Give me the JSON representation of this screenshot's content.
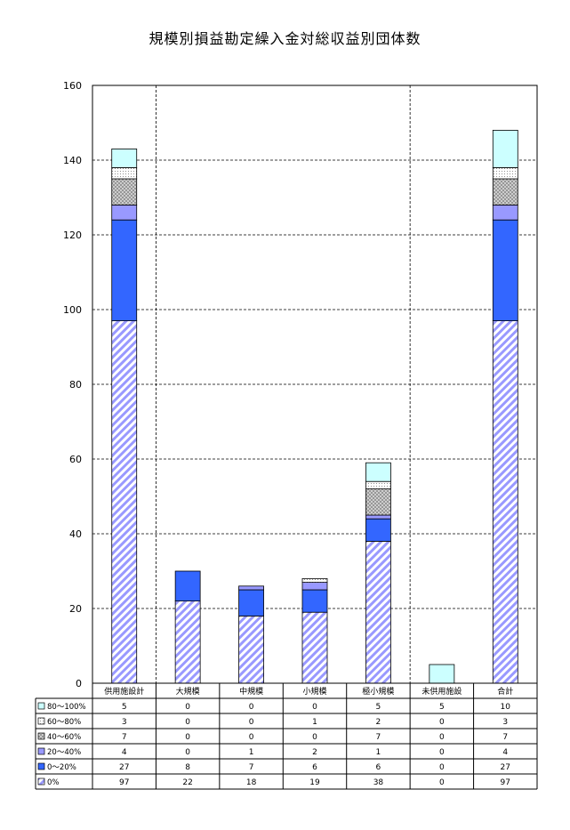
{
  "chart_data": {
    "type": "bar",
    "stacked": true,
    "title": "規模別損益勘定繰入金対総収益別団体数",
    "xlabel": "",
    "ylabel": "",
    "ylim": [
      0,
      160
    ],
    "yticks": [
      0,
      20,
      40,
      60,
      80,
      100,
      120,
      140,
      160
    ],
    "grid": true,
    "legend": "data-table-left",
    "categories": [
      "供用施設計",
      "大規模",
      "中規模",
      "小規模",
      "極小規模",
      "未供用施設",
      "合計"
    ],
    "series": [
      {
        "name": "0%",
        "values": [
          97,
          22,
          18,
          19,
          38,
          0,
          97
        ],
        "color": "#9999ff",
        "fill": "hatch"
      },
      {
        "name": "0～20%",
        "values": [
          27,
          8,
          7,
          6,
          6,
          0,
          27
        ],
        "color": "#3366ff",
        "fill": "solid"
      },
      {
        "name": "20～40%",
        "values": [
          4,
          0,
          1,
          2,
          1,
          0,
          4
        ],
        "color": "#9999ff",
        "fill": "solid"
      },
      {
        "name": "40～60%",
        "values": [
          7,
          0,
          0,
          0,
          7,
          0,
          7
        ],
        "color": "#c0c0c0",
        "fill": "grid"
      },
      {
        "name": "60～80%",
        "values": [
          3,
          0,
          0,
          1,
          2,
          0,
          3
        ],
        "color": "#ffffff",
        "fill": "dots"
      },
      {
        "name": "80～100%",
        "values": [
          5,
          0,
          0,
          0,
          5,
          5,
          10
        ],
        "color": "#ccffff",
        "fill": "solid"
      }
    ],
    "table_order": [
      "80～100%",
      "60～80%",
      "40～60%",
      "20～40%",
      "0～20%",
      "0%"
    ]
  }
}
